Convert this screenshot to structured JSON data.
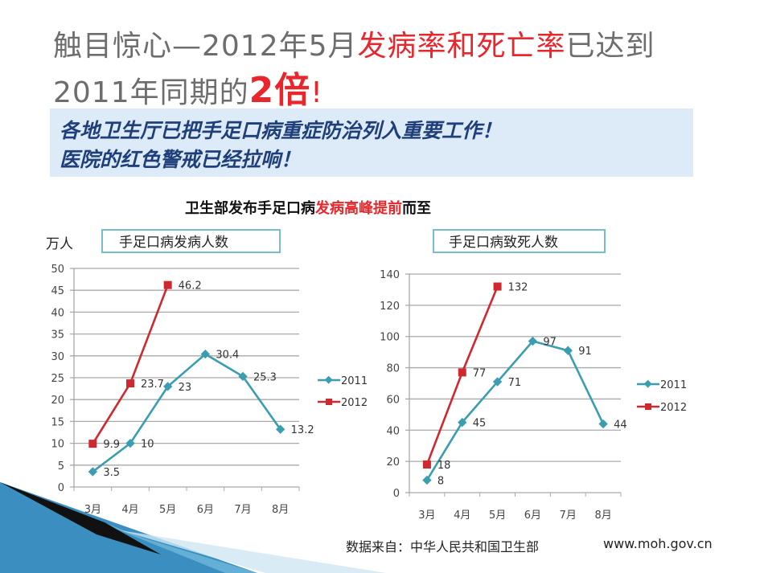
{
  "title": {
    "line1_a": "触目惊心—2012年5月",
    "line1_red": "发病率和死亡率",
    "line1_b": "已达到",
    "line2_a": "2011年同期的",
    "line2_red": "2倍",
    "line2_b": "!"
  },
  "banner": {
    "line1": "各地卫生厅已把手足口病重症防治列入重要工作！",
    "line2": "医院的红色警戒已经拉响！"
  },
  "subtitle": {
    "a": "卫生部发布手足口病",
    "red": "发病高峰提前",
    "b": "而至"
  },
  "unit_label": "万人",
  "footer": {
    "source": "数据来自：中华人民共和国卫生部",
    "url": "www.moh.gov.cn"
  },
  "colors": {
    "series_2011": "#3a9db0",
    "series_2012": "#d0282f",
    "accent_red": "#e8262b",
    "banner_bg": "#dcebf7"
  },
  "chart_data": [
    {
      "type": "line",
      "title": "手足口病发病人数",
      "ylabel": "万人",
      "categories": [
        "3月",
        "4月",
        "5月",
        "6月",
        "7月",
        "8月"
      ],
      "ylim": [
        0,
        50
      ],
      "yticks": [
        0,
        5,
        10,
        15,
        20,
        25,
        30,
        35,
        40,
        45,
        50
      ],
      "grid": true,
      "legend": "right",
      "series": [
        {
          "name": "2011",
          "values": [
            3.5,
            10,
            23,
            30.4,
            25.3,
            13.2
          ],
          "labels": [
            "3.5",
            "10",
            "23",
            "30.4",
            "25.3",
            "13.2"
          ]
        },
        {
          "name": "2012",
          "values": [
            9.9,
            23.7,
            46.2,
            null,
            null,
            null
          ],
          "labels": [
            "9.9",
            "23.7",
            "46.2"
          ]
        }
      ]
    },
    {
      "type": "line",
      "title": "手足口病致死人数",
      "categories": [
        "3月",
        "4月",
        "5月",
        "6月",
        "7月",
        "8月"
      ],
      "ylim": [
        0,
        140
      ],
      "yticks": [
        0,
        20,
        40,
        60,
        80,
        100,
        120,
        140
      ],
      "grid": true,
      "legend": "right",
      "series": [
        {
          "name": "2011",
          "values": [
            8,
            45,
            71,
            97,
            91,
            44
          ],
          "labels": [
            "8",
            "45",
            "71",
            "97",
            "91",
            "44"
          ]
        },
        {
          "name": "2012",
          "values": [
            18,
            77,
            132,
            null,
            null,
            null
          ],
          "labels": [
            "18",
            "77",
            "132"
          ]
        }
      ]
    }
  ]
}
